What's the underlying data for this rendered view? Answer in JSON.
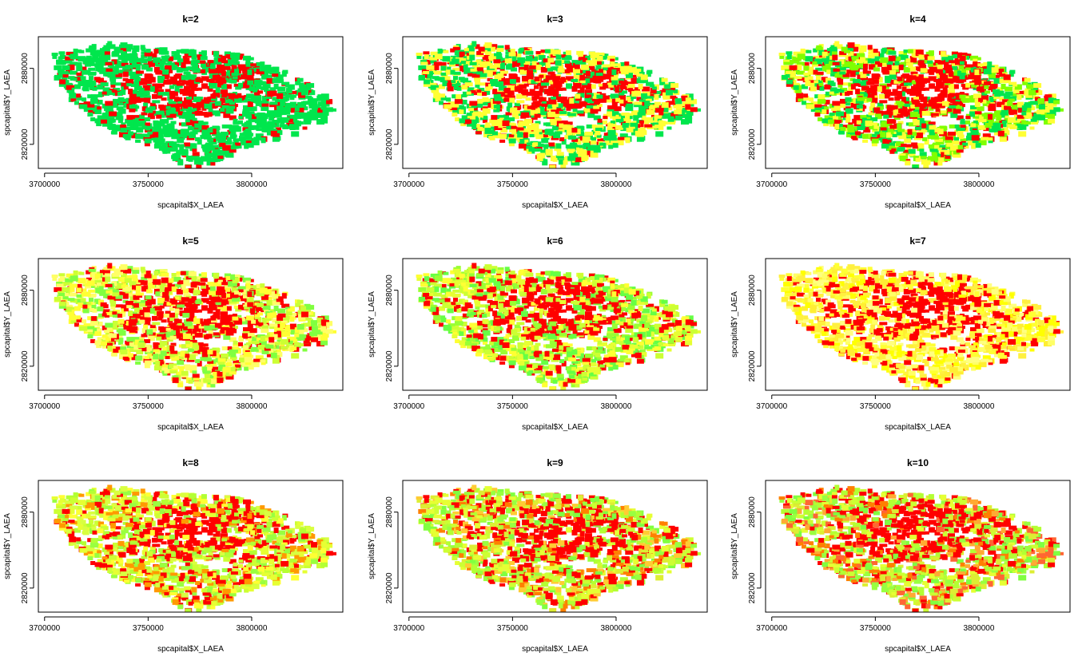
{
  "chart_data": [
    {
      "type": "scatter",
      "title": "k=2",
      "xlabel": "spcapital$X_LAEA",
      "ylabel": "spcapital$Y_LAEA",
      "xticks": [
        3700000,
        3750000,
        3800000
      ],
      "yticks": [
        2820000,
        2880000
      ],
      "xlim": [
        3697000,
        3844000
      ],
      "ylim": [
        2801000,
        2905000
      ],
      "cluster_colors": [
        "#FF0000",
        "#00E64D"
      ],
      "grid": false,
      "legend": "none"
    },
    {
      "type": "scatter",
      "title": "k=3",
      "xlabel": "spcapital$X_LAEA",
      "ylabel": "spcapital$Y_LAEA",
      "xticks": [
        3700000,
        3750000,
        3800000
      ],
      "yticks": [
        2820000,
        2880000
      ],
      "xlim": [
        3697000,
        3844000
      ],
      "ylim": [
        2801000,
        2905000
      ],
      "cluster_colors": [
        "#FF0000",
        "#00E64D",
        "#FFFF33"
      ],
      "grid": false,
      "legend": "none"
    },
    {
      "type": "scatter",
      "title": "k=4",
      "xlabel": "spcapital$X_LAEA",
      "ylabel": "spcapital$Y_LAEA",
      "xticks": [
        3700000,
        3750000,
        3800000
      ],
      "yticks": [
        2820000,
        2880000
      ],
      "xlim": [
        3697000,
        3844000
      ],
      "ylim": [
        2801000,
        2905000
      ],
      "cluster_colors": [
        "#FF0000",
        "#00E64D",
        "#80FF00",
        "#FFFF33"
      ],
      "grid": false,
      "legend": "none"
    },
    {
      "type": "scatter",
      "title": "k=5",
      "xlabel": "spcapital$X_LAEA",
      "ylabel": "spcapital$Y_LAEA",
      "xticks": [
        3700000,
        3750000,
        3800000
      ],
      "yticks": [
        2820000,
        2880000
      ],
      "xlim": [
        3697000,
        3844000
      ],
      "ylim": [
        2801000,
        2905000
      ],
      "cluster_colors": [
        "#FF0000",
        "#FFFF33",
        "#CCFF33",
        "#80FF40",
        "#FFFF66"
      ],
      "grid": false,
      "legend": "none"
    },
    {
      "type": "scatter",
      "title": "k=6",
      "xlabel": "spcapital$X_LAEA",
      "ylabel": "spcapital$Y_LAEA",
      "xticks": [
        3700000,
        3750000,
        3800000
      ],
      "yticks": [
        2820000,
        2880000
      ],
      "xlim": [
        3697000,
        3844000
      ],
      "ylim": [
        2801000,
        2905000
      ],
      "cluster_colors": [
        "#FF0000",
        "#99FF33",
        "#CCFF33",
        "#66FF44",
        "#FFFF33",
        "#E6FF33"
      ],
      "grid": false,
      "legend": "none"
    },
    {
      "type": "scatter",
      "title": "k=7",
      "xlabel": "spcapital$X_LAEA",
      "ylabel": "spcapital$Y_LAEA",
      "xticks": [
        3700000,
        3750000,
        3800000
      ],
      "yticks": [
        2820000,
        2880000
      ],
      "xlim": [
        3697000,
        3844000
      ],
      "ylim": [
        2801000,
        2905000
      ],
      "cluster_colors": [
        "#FF0000",
        "#FFFF33",
        "#FFFF66",
        "#FFF040",
        "#FFFF00",
        "#FFEE33",
        "#FFFF80"
      ],
      "grid": false,
      "legend": "none"
    },
    {
      "type": "scatter",
      "title": "k=8",
      "xlabel": "spcapital$X_LAEA",
      "ylabel": "spcapital$Y_LAEA",
      "xticks": [
        3700000,
        3750000,
        3800000
      ],
      "yticks": [
        2820000,
        2880000
      ],
      "xlim": [
        3697000,
        3844000
      ],
      "ylim": [
        2801000,
        2905000
      ],
      "cluster_colors": [
        "#FF0000",
        "#E6FF33",
        "#CCFF33",
        "#B3FF33",
        "#FFFF33",
        "#99FF40",
        "#FF9900",
        "#D9FF40"
      ],
      "grid": false,
      "legend": "none"
    },
    {
      "type": "scatter",
      "title": "k=9",
      "xlabel": "spcapital$X_LAEA",
      "ylabel": "spcapital$Y_LAEA",
      "xticks": [
        3700000,
        3750000,
        3800000
      ],
      "yticks": [
        2820000,
        2880000
      ],
      "xlim": [
        3697000,
        3844000
      ],
      "ylim": [
        2801000,
        2905000
      ],
      "cluster_colors": [
        "#FF0000",
        "#FF8000",
        "#CCFF33",
        "#B3FF33",
        "#E6FF33",
        "#99FF40",
        "#FFCC33",
        "#80FF40",
        "#DDEE33"
      ],
      "grid": false,
      "legend": "none"
    },
    {
      "type": "scatter",
      "title": "k=10",
      "xlabel": "spcapital$X_LAEA",
      "ylabel": "spcapital$Y_LAEA",
      "xticks": [
        3700000,
        3750000,
        3800000
      ],
      "yticks": [
        2820000,
        2880000
      ],
      "xlim": [
        3697000,
        3844000
      ],
      "ylim": [
        2801000,
        2905000
      ],
      "cluster_colors": [
        "#FF0000",
        "#FF8000",
        "#CCFF33",
        "#B3FF33",
        "#E6FF33",
        "#99FF40",
        "#FFAA33",
        "#80FF40",
        "#DDEE33",
        "#FF6633"
      ],
      "grid": false,
      "legend": "none"
    }
  ]
}
